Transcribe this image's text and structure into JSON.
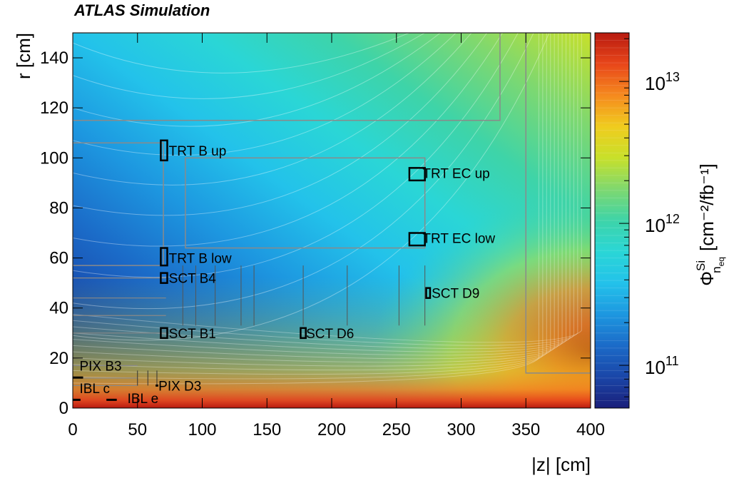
{
  "chart_data": {
    "type": "heatmap",
    "title": "ATLAS Simulation",
    "xlabel": "|z| [cm]",
    "ylabel": "r [cm]",
    "xlim": [
      0,
      400
    ],
    "ylim": [
      0,
      150
    ],
    "x_ticks": [
      "0",
      "50",
      "100",
      "150",
      "200",
      "250",
      "300",
      "350",
      "400"
    ],
    "y_ticks": [
      "0",
      "20",
      "40",
      "60",
      "80",
      "100",
      "120",
      "140"
    ],
    "colorbar": {
      "label_symbol": "Φ",
      "label_superscript": "Si",
      "label_subscript_base": "n",
      "label_subscript_sub": "eq",
      "label_units": "[cm⁻²/fb⁻¹]",
      "scale": "log",
      "range": [
        50000000000.0,
        22000000000000.0
      ],
      "ticks": [
        {
          "value": 100000000000.0,
          "base": "10",
          "exp": "11"
        },
        {
          "value": 1000000000000.0,
          "base": "10",
          "exp": "12"
        },
        {
          "value": 10000000000000.0,
          "base": "10",
          "exp": "13"
        }
      ],
      "colors": [
        "#1a1f7a",
        "#1a46a8",
        "#1b6bc8",
        "#1d97e0",
        "#23c2ea",
        "#2ad6d6",
        "#3ed4a8",
        "#7fd86f",
        "#c8e02a",
        "#f0cc1e",
        "#f58a1e",
        "#e8461a",
        "#b81a10"
      ]
    },
    "regions": [
      {
        "name": "",
        "z": [
          0,
          330
        ],
        "r": [
          115,
          150
        ]
      },
      {
        "name": "",
        "z": [
          0,
          70
        ],
        "r": [
          57,
          106
        ]
      },
      {
        "name": "",
        "z": [
          87,
          272
        ],
        "r": [
          64,
          100
        ]
      },
      {
        "name": "",
        "z": [
          350,
          400
        ],
        "r": [
          14,
          150
        ]
      }
    ],
    "annotations": [
      {
        "label": "TRT B up",
        "z": 72,
        "r": 103,
        "box": [
          [
            68,
            99
          ],
          [
            73,
            107
          ]
        ]
      },
      {
        "label": "TRT B low",
        "z": 72,
        "r": 60,
        "box": [
          [
            68,
            57
          ],
          [
            73,
            64
          ]
        ]
      },
      {
        "label": "TRT EC up",
        "z": 268,
        "r": 94,
        "box": [
          [
            260,
            91
          ],
          [
            272,
            96
          ]
        ]
      },
      {
        "label": "TRT EC low",
        "z": 268,
        "r": 68,
        "box": [
          [
            260,
            65
          ],
          [
            272,
            70
          ]
        ]
      },
      {
        "label": "SCT B4",
        "z": 72,
        "r": 52,
        "box": [
          [
            68,
            50
          ],
          [
            73,
            54
          ]
        ]
      },
      {
        "label": "SCT B1",
        "z": 72,
        "r": 30,
        "box": [
          [
            68,
            28
          ],
          [
            73,
            32
          ]
        ]
      },
      {
        "label": "SCT D6",
        "z": 178,
        "r": 30,
        "box": [
          [
            176,
            28
          ],
          [
            180,
            32
          ]
        ]
      },
      {
        "label": "SCT D9",
        "z": 275,
        "r": 46,
        "box": [
          [
            273,
            44
          ],
          [
            276,
            48
          ]
        ]
      },
      {
        "label": "PIX B3",
        "z": 3,
        "r": 17
      },
      {
        "label": "PIX D3",
        "z": 64,
        "r": 9
      },
      {
        "label": "IBL c",
        "z": 3,
        "r": 8
      },
      {
        "label": "IBL e",
        "z": 40,
        "r": 4
      }
    ]
  }
}
